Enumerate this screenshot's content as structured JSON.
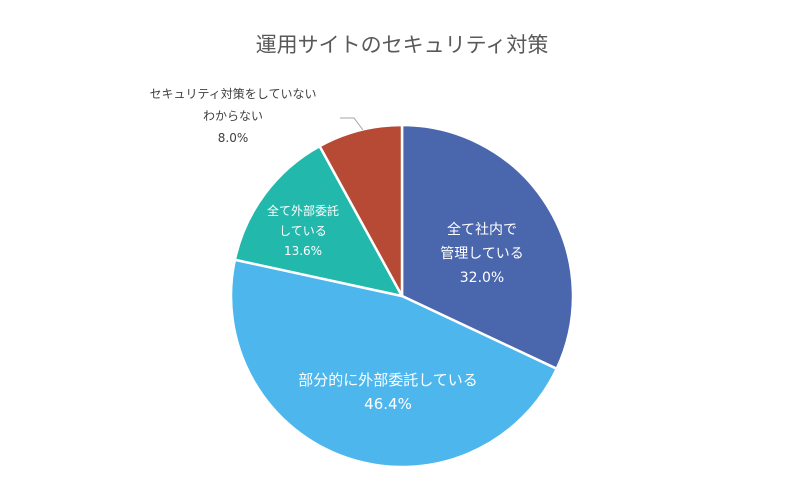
{
  "chart_data": {
    "type": "pie",
    "title": "運用サイトのセキュリティ対策",
    "slices": [
      {
        "label_lines": [
          "全て社内で",
          "管理している"
        ],
        "value_label": "32.0%",
        "value": 32.0,
        "color": "#4A66AC"
      },
      {
        "label_lines": [
          "部分的に外部委託している"
        ],
        "value_label": "46.4%",
        "value": 46.4,
        "color": "#4DB6EC"
      },
      {
        "label_lines": [
          "全て外部委託",
          "している"
        ],
        "value_label": "13.6%",
        "value": 13.6,
        "color": "#22B9AC"
      },
      {
        "label_lines": [
          "セキュリティ対策をしていない",
          "わからない"
        ],
        "value_label": "8.0%",
        "value": 8.0,
        "color": "#B64A34"
      }
    ]
  }
}
